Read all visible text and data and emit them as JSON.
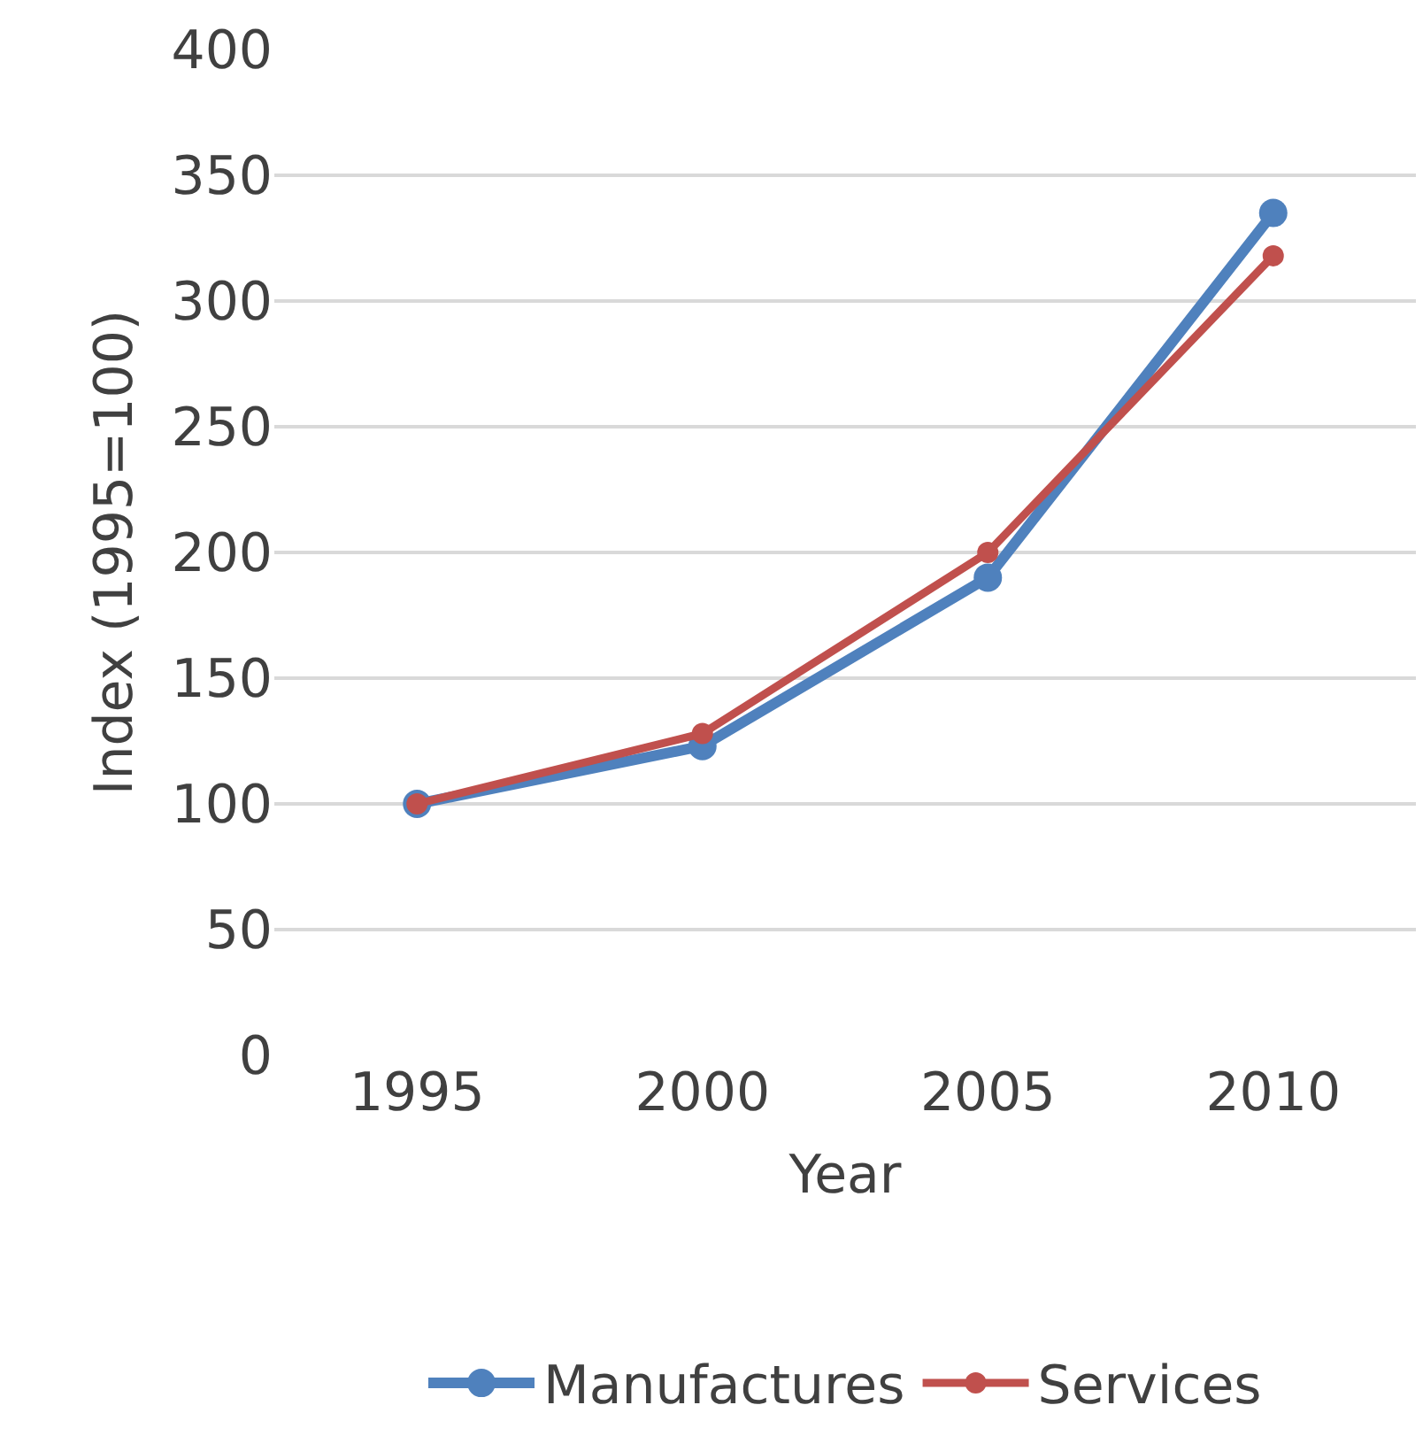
{
  "chart_data": {
    "type": "line",
    "xlabel": "Year",
    "ylabel": "Index (1995=100)",
    "categories": [
      "1995",
      "2000",
      "2005",
      "2010"
    ],
    "series": [
      {
        "name": "Manufactures",
        "color": "#4f81bd",
        "values": [
          100,
          123,
          190,
          335
        ]
      },
      {
        "name": "Services",
        "color": "#c0504d",
        "values": [
          100,
          128,
          200,
          318
        ]
      }
    ],
    "ylim": [
      0,
      400
    ],
    "yticks": [
      0,
      50,
      100,
      150,
      200,
      250,
      300,
      350,
      400
    ],
    "grid": "y",
    "legend": "bottom",
    "marker": "circle",
    "line_style": "solid"
  }
}
